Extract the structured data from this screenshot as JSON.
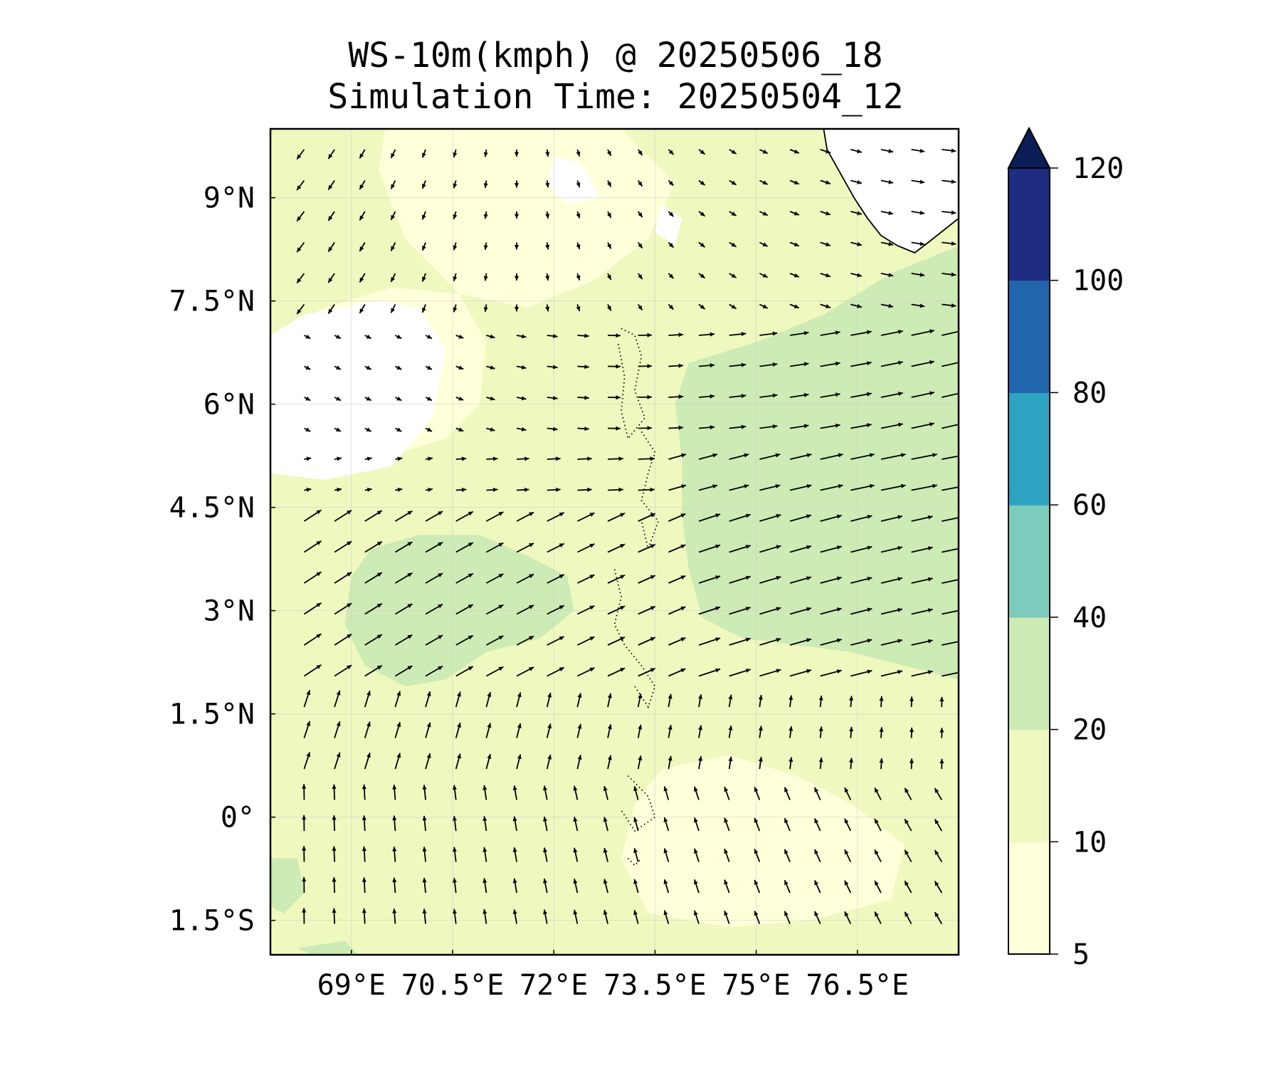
{
  "title": "WS-10m(kmph) @ 20250506_18",
  "subtitle": "Simulation Time: 20250504_12",
  "map": {
    "lon_range": [
      67.8,
      78.0
    ],
    "lat_range": [
      -2.0,
      10.0
    ],
    "lon_ticks": [
      {
        "value": 69.0,
        "label": "69°E"
      },
      {
        "value": 70.5,
        "label": "70.5°E"
      },
      {
        "value": 72.0,
        "label": "72°E"
      },
      {
        "value": 73.5,
        "label": "73.5°E"
      },
      {
        "value": 75.0,
        "label": "75°E"
      },
      {
        "value": 76.5,
        "label": "76.5°E"
      }
    ],
    "lat_ticks": [
      {
        "value": 9.0,
        "label": "9°N"
      },
      {
        "value": 7.5,
        "label": "7.5°N"
      },
      {
        "value": 6.0,
        "label": "6°N"
      },
      {
        "value": 4.5,
        "label": "4.5°N"
      },
      {
        "value": 3.0,
        "label": "3°N"
      },
      {
        "value": 1.5,
        "label": "1.5°N"
      },
      {
        "value": 0.0,
        "label": "0°"
      },
      {
        "value": -1.5,
        "label": "1.5°S"
      }
    ],
    "gridlines": true,
    "field": "10 m wind speed",
    "vectors": "10 m wind direction"
  },
  "colorbar": {
    "levels": [
      {
        "from": 5,
        "to": 10,
        "color": "#ffffd9"
      },
      {
        "from": 10,
        "to": 20,
        "color": "#eff8bf"
      },
      {
        "from": 20,
        "to": 40,
        "color": "#cdebb4"
      },
      {
        "from": 40,
        "to": 60,
        "color": "#7ccbbc"
      },
      {
        "from": 60,
        "to": 80,
        "color": "#2ea3c2"
      },
      {
        "from": 80,
        "to": 100,
        "color": "#2166ac"
      },
      {
        "from": 100,
        "to": 120,
        "color": "#1f2d80"
      }
    ],
    "extend_max_color": "#0b1f56",
    "tick_labels": [
      "5",
      "10",
      "20",
      "40",
      "60",
      "80",
      "100",
      "120"
    ],
    "extend": "max"
  }
}
